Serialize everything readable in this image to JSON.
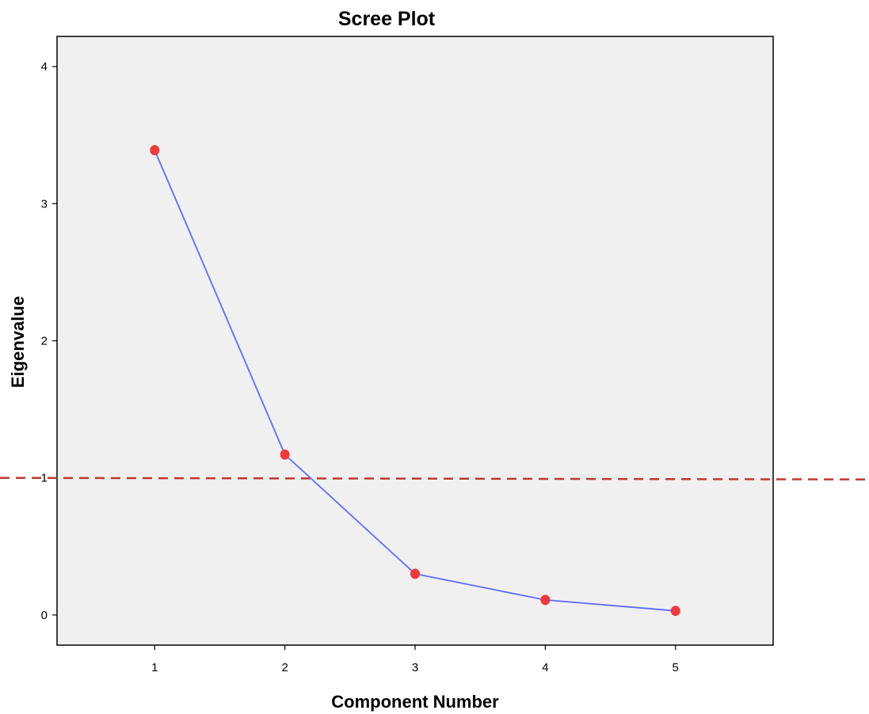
{
  "chart_data": {
    "type": "line",
    "title": "Scree Plot",
    "xlabel": "Component Number",
    "ylabel": "Eigenvalue",
    "x": [
      1,
      2,
      3,
      4,
      5
    ],
    "series": [
      {
        "values": [
          3.39,
          1.17,
          0.3,
          0.11,
          0.03
        ]
      }
    ],
    "xticks": [
      "1",
      "2",
      "3",
      "4",
      "5"
    ],
    "yticks": [
      "0",
      "1",
      "2",
      "3",
      "4"
    ],
    "xlim": [
      0.25,
      5.75
    ],
    "ylim": [
      -0.22,
      4.22
    ],
    "reference_line": {
      "y": 1,
      "style": "dashed",
      "color": "#c0392b"
    },
    "grid": false,
    "colors": {
      "plot_background": "#f0f0f0",
      "line": "#5b6cff",
      "marker": "#f03a3a"
    }
  }
}
